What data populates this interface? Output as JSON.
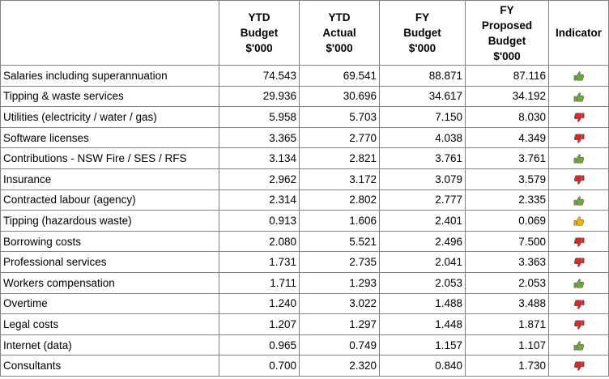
{
  "header": {
    "category": "",
    "ytd_budget": [
      "YTD",
      "Budget",
      "$'000"
    ],
    "ytd_actual": [
      "YTD",
      "Actual",
      "$'000"
    ],
    "fy_budget": [
      "FY",
      "Budget",
      "$'000"
    ],
    "fy_proposed": [
      "FY",
      "Proposed",
      "Budget",
      "$'000"
    ],
    "indicator": "Indicator"
  },
  "colors": {
    "good": "#6fa83a",
    "bad": "#d42a2a",
    "neutral": "#f0b400"
  },
  "rows": [
    {
      "name": "Salaries including superannuation",
      "ytd_budget": "74.543",
      "ytd_actual": "69.541",
      "fy_budget": "88.871",
      "fy_proposed": "87.116",
      "indicator": "thumbs-up-green"
    },
    {
      "name": "Tipping & waste services",
      "ytd_budget": "29.936",
      "ytd_actual": "30.696",
      "fy_budget": "34.617",
      "fy_proposed": "34.192",
      "indicator": "thumbs-up-green"
    },
    {
      "name": "Utilities (electricity / water / gas)",
      "ytd_budget": "5.958",
      "ytd_actual": "5.703",
      "fy_budget": "7.150",
      "fy_proposed": "8.030",
      "indicator": "thumbs-down-red"
    },
    {
      "name": "Software licenses",
      "ytd_budget": "3.365",
      "ytd_actual": "2.770",
      "fy_budget": "4.038",
      "fy_proposed": "4.349",
      "indicator": "thumbs-down-red"
    },
    {
      "name": "Contributions - NSW Fire / SES / RFS",
      "ytd_budget": "3.134",
      "ytd_actual": "2.821",
      "fy_budget": "3.761",
      "fy_proposed": "3.761",
      "indicator": "thumbs-up-green"
    },
    {
      "name": "Insurance",
      "ytd_budget": "2.962",
      "ytd_actual": "3.172",
      "fy_budget": "3.079",
      "fy_proposed": "3.579",
      "indicator": "thumbs-down-red"
    },
    {
      "name": "Contracted labour (agency)",
      "ytd_budget": "2.314",
      "ytd_actual": "2.802",
      "fy_budget": "2.777",
      "fy_proposed": "2.335",
      "indicator": "thumbs-up-green"
    },
    {
      "name": "Tipping (hazardous waste)",
      "ytd_budget": "0.913",
      "ytd_actual": "1.606",
      "fy_budget": "2.401",
      "fy_proposed": "0.069",
      "indicator": "thumbs-up-yellow"
    },
    {
      "name": "Borrowing costs",
      "ytd_budget": "2.080",
      "ytd_actual": "5.521",
      "fy_budget": "2.496",
      "fy_proposed": "7.500",
      "indicator": "thumbs-down-red"
    },
    {
      "name": "Professional services",
      "ytd_budget": "1.731",
      "ytd_actual": "2.735",
      "fy_budget": "2.041",
      "fy_proposed": "3.363",
      "indicator": "thumbs-down-red"
    },
    {
      "name": "Workers compensation",
      "ytd_budget": "1.711",
      "ytd_actual": "1.293",
      "fy_budget": "2.053",
      "fy_proposed": "2.053",
      "indicator": "thumbs-up-green"
    },
    {
      "name": "Overtime",
      "ytd_budget": "1.240",
      "ytd_actual": "3.022",
      "fy_budget": "1.488",
      "fy_proposed": "3.488",
      "indicator": "thumbs-down-red"
    },
    {
      "name": "Legal costs",
      "ytd_budget": "1.207",
      "ytd_actual": "1.297",
      "fy_budget": "1.448",
      "fy_proposed": "1.871",
      "indicator": "thumbs-down-red"
    },
    {
      "name": "Internet (data)",
      "ytd_budget": "0.965",
      "ytd_actual": "0.749",
      "fy_budget": "1.157",
      "fy_proposed": "1.107",
      "indicator": "thumbs-up-green"
    },
    {
      "name": "Consultants",
      "ytd_budget": "0.700",
      "ytd_actual": "2.320",
      "fy_budget": "0.840",
      "fy_proposed": "1.730",
      "indicator": "thumbs-down-red"
    }
  ]
}
